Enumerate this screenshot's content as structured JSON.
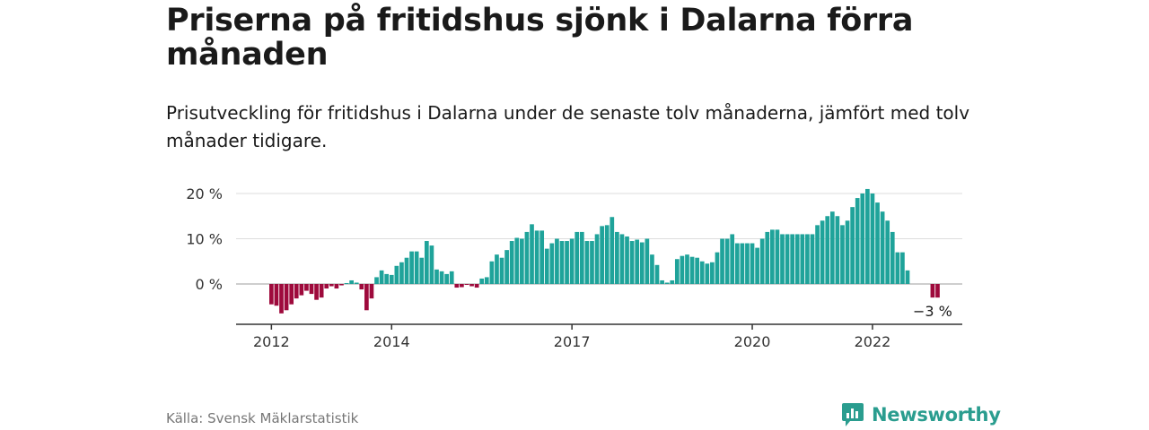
{
  "title": "Priserna på fritidshus sjönk i Dalarna förra månaden",
  "subtitle": "Prisutveckling för fritidshus i Dalarna under de senaste tolv månaderna, jämfört med tolv månader tidigare.",
  "source": "Källa: Svensk Mäklarstatistik",
  "brand": "Newsworthy",
  "chart_data": {
    "type": "bar",
    "y_ticks": [
      {
        "value": 20,
        "label": "20 %"
      },
      {
        "value": 10,
        "label": "10 %"
      },
      {
        "value": 0,
        "label": "0 %"
      }
    ],
    "x_ticks": [
      {
        "index": 0,
        "label": "2012"
      },
      {
        "index": 24,
        "label": "2014"
      },
      {
        "index": 60,
        "label": "2017"
      },
      {
        "index": 96,
        "label": "2020"
      },
      {
        "index": 120,
        "label": "2022"
      }
    ],
    "ylim": [
      -8,
      21
    ],
    "grid": true,
    "positive_color": "#1fa39a",
    "negative_color": "#9e0a3c",
    "annotation": {
      "index": 132,
      "label": "−3 %"
    },
    "values": [
      -4.5,
      -4.8,
      -6.5,
      -5.8,
      -4.5,
      -3.2,
      -2.5,
      -1.5,
      -2.2,
      -3.5,
      -3.0,
      -1.0,
      -0.5,
      -1.0,
      -0.3,
      0.2,
      0.8,
      0.3,
      -1.2,
      -5.8,
      -3.2,
      1.5,
      3.0,
      2.2,
      2.0,
      4.0,
      4.8,
      5.8,
      7.2,
      7.2,
      5.8,
      9.5,
      8.5,
      3.2,
      2.8,
      2.2,
      2.8,
      -0.8,
      -0.7,
      -0.2,
      -0.5,
      -0.8,
      1.2,
      1.5,
      5.0,
      6.5,
      5.8,
      7.5,
      9.5,
      10.2,
      10.0,
      11.5,
      13.2,
      11.8,
      11.8,
      7.8,
      9.0,
      10.0,
      9.5,
      9.5,
      10.0,
      11.5,
      11.5,
      9.5,
      9.5,
      11.0,
      12.8,
      13.0,
      14.8,
      11.5,
      11.0,
      10.5,
      9.5,
      9.8,
      9.2,
      10.0,
      6.5,
      4.2,
      0.8,
      0.3,
      0.8,
      5.5,
      6.2,
      6.5,
      6.0,
      5.8,
      5.0,
      4.5,
      4.8,
      7.0,
      10.0,
      10.0,
      11.0,
      9.0,
      9.0,
      9.0,
      9.0,
      8.0,
      10.0,
      11.5,
      12.0,
      12.0,
      11.0,
      11.0,
      11.0,
      11.0,
      11.0,
      11.0,
      11.0,
      13.0,
      14.0,
      15.0,
      16.0,
      15.0,
      13.0,
      14.0,
      17.0,
      19.0,
      20.0,
      21.0,
      20.0,
      18.0,
      16.0,
      14.0,
      11.5,
      7.0,
      7.0,
      3.0,
      null,
      null,
      null,
      null,
      -3.0,
      -3.0
    ]
  }
}
